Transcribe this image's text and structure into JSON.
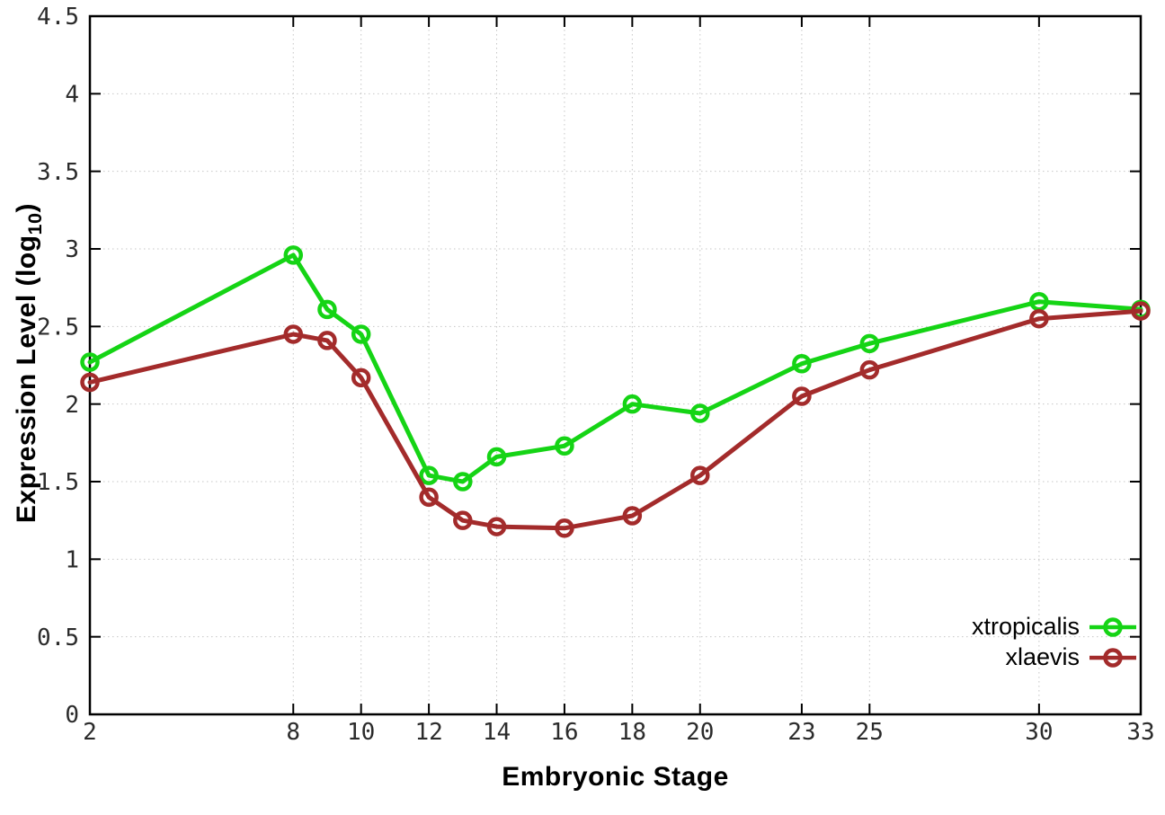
{
  "chart_data": {
    "type": "line",
    "title": "",
    "xlabel": "Embryonic Stage",
    "ylabel_prefix": "Expression Level (log",
    "ylabel_sub": "10",
    "ylabel_suffix": ")",
    "x": [
      2,
      8,
      9,
      10,
      12,
      13,
      14,
      16,
      18,
      20,
      23,
      25,
      30,
      33
    ],
    "series": [
      {
        "name": "xtropicalis",
        "color": "#15d415",
        "values": [
          2.27,
          2.96,
          2.61,
          2.45,
          1.54,
          1.5,
          1.66,
          1.73,
          2.0,
          1.94,
          2.26,
          2.39,
          2.66,
          2.61
        ]
      },
      {
        "name": "xlaevis",
        "color": "#a32b2b",
        "values": [
          2.14,
          2.45,
          2.41,
          2.17,
          1.4,
          1.25,
          1.21,
          1.2,
          1.28,
          1.54,
          2.05,
          2.22,
          2.55,
          2.6
        ]
      }
    ],
    "x_ticks": [
      2,
      8,
      10,
      12,
      14,
      16,
      18,
      20,
      23,
      25,
      30,
      33
    ],
    "y_ticks": [
      0,
      0.5,
      1,
      1.5,
      2,
      2.5,
      3,
      3.5,
      4,
      4.5
    ],
    "xlim": [
      2,
      33
    ],
    "ylim": [
      0,
      4.5
    ],
    "grid": true,
    "grid_color": "#c6c6c6",
    "border_color": "#000000",
    "legend_position": "bottom-right",
    "marker": "open-circle"
  }
}
